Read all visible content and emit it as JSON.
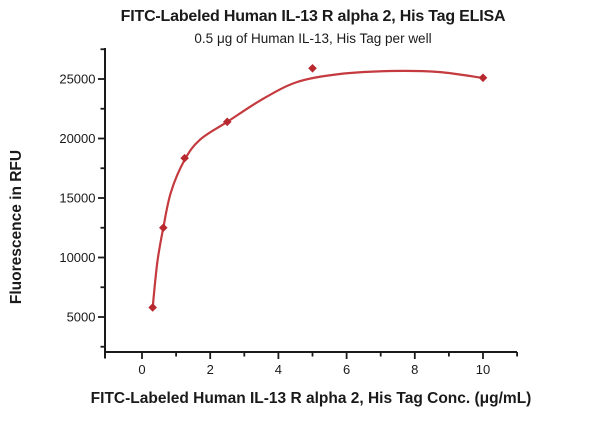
{
  "figure": {
    "title": "FITC-Labeled Human IL-13 R alpha 2, His Tag ELISA",
    "subtitle": "0.5 μg of Human IL-13, His Tag per well"
  },
  "chart_data": {
    "type": "scatter",
    "title": "FITC-Labeled Human IL-13 R alpha 2, His Tag ELISA",
    "subtitle": "0.5 μg of Human IL-13, His Tag per well",
    "xlabel": "FITC-Labeled Human IL-13 R alpha 2, His Tag Conc. (μg/mL)",
    "ylabel": "Fluorescence in RFU",
    "x": [
      0.3125,
      0.625,
      1.25,
      2.5,
      5,
      10
    ],
    "y": [
      5800,
      12500,
      18350,
      21400,
      25900,
      25100
    ],
    "fit_curve": [
      [
        0.3125,
        5800
      ],
      [
        0.45,
        9600
      ],
      [
        0.625,
        12500
      ],
      [
        0.85,
        15500
      ],
      [
        1.25,
        18200
      ],
      [
        1.7,
        19900
      ],
      [
        2.5,
        21400
      ],
      [
        3.5,
        23250
      ],
      [
        4.55,
        24750
      ],
      [
        5.8,
        25420
      ],
      [
        7.3,
        25670
      ],
      [
        8.7,
        25590
      ],
      [
        10,
        25080
      ]
    ],
    "xlim": [
      -1,
      11
    ],
    "ylim": [
      2000,
      27600
    ],
    "x_major_ticks": [
      0,
      2,
      4,
      6,
      8,
      10
    ],
    "x_minor_ticks": [
      1,
      3,
      5,
      7,
      9,
      11
    ],
    "y_major_ticks": [
      5000,
      10000,
      15000,
      20000,
      25000
    ],
    "y_minor_ticks": [
      2500,
      7500,
      12500,
      17500,
      22500,
      27500
    ],
    "grid": false,
    "legend": null,
    "marker": "diamond",
    "line_color": "#c43a3e",
    "marker_color": "#b8292f",
    "axis_color": "#1a1a1a"
  }
}
